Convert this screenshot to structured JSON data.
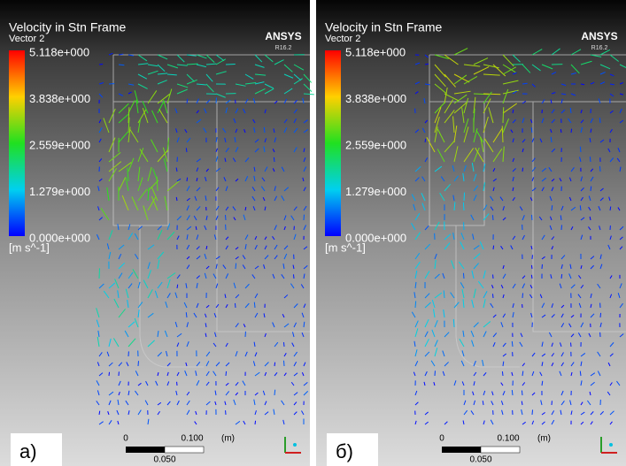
{
  "panels": [
    {
      "title": "Velocity in Stn Frame",
      "subtitle": "Vector 2",
      "legend_labels": [
        "5.118e+000",
        "3.838e+000",
        "2.559e+000",
        "1.279e+000",
        "0.000e+000"
      ],
      "unit": "[m s^-1]",
      "logo": "ANSYS",
      "version": "R16.2",
      "scale": {
        "start": "0",
        "end": "0.100",
        "unit": "(m)",
        "mid": "0.050"
      },
      "label": "a)"
    },
    {
      "title": "Velocity in Stn Frame",
      "subtitle": "Vector 2",
      "legend_labels": [
        "5.118e+000",
        "3.838e+000",
        "2.559e+000",
        "1.279e+000",
        "0.000e+000"
      ],
      "unit": "[m s^-1]",
      "logo": "ANSYS",
      "version": "R16.2",
      "scale": {
        "start": "0",
        "end": "0.100",
        "unit": "(m)",
        "mid": "0.050"
      },
      "label": "б)"
    }
  ]
}
